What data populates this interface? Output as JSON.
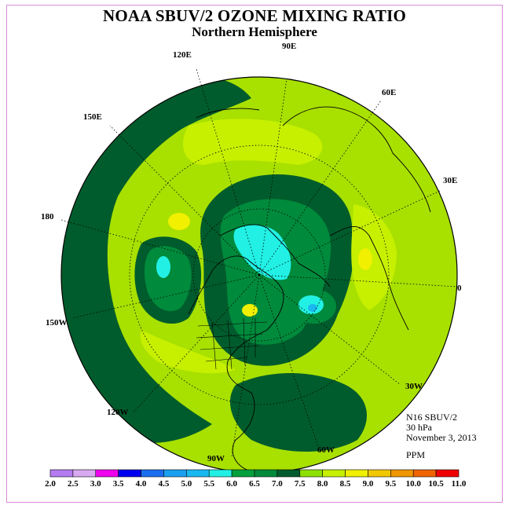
{
  "title": "NOAA SBUV/2 OZONE MIXING RATIO",
  "subtitle": "Northern Hemisphere",
  "info": {
    "satellite": "N16 SBUV/2",
    "level": "30 hPa",
    "date": "November 3, 2013",
    "unit": "PPM"
  },
  "longitude_labels": [
    "90E",
    "60E",
    "30E",
    "0",
    "30W",
    "60W",
    "90W",
    "120W",
    "150W",
    "180",
    "150E",
    "120E"
  ],
  "colorbar": {
    "labels": [
      "2.0",
      "2.5",
      "3.0",
      "3.5",
      "4.0",
      "4.5",
      "5.0",
      "5.5",
      "6.0",
      "6.5",
      "7.0",
      "7.5",
      "8.0",
      "8.5",
      "9.0",
      "9.5",
      "10.0",
      "10.5",
      "11.0"
    ],
    "colors": [
      "#b57bf0",
      "#d8aaf2",
      "#ef00ef",
      "#0000f0",
      "#1a6ef0",
      "#1aa0f0",
      "#1ab8f0",
      "#22f0e4",
      "#00a03c",
      "#008a3c",
      "#005c2c",
      "#8ee000",
      "#c6f000",
      "#f0f000",
      "#f0c800",
      "#f09600",
      "#f06400",
      "#f00000",
      "#8a5a3c"
    ]
  },
  "colors": {
    "frame": "#d98ad9",
    "map_background": "#a8e000",
    "outline": "#000000"
  }
}
